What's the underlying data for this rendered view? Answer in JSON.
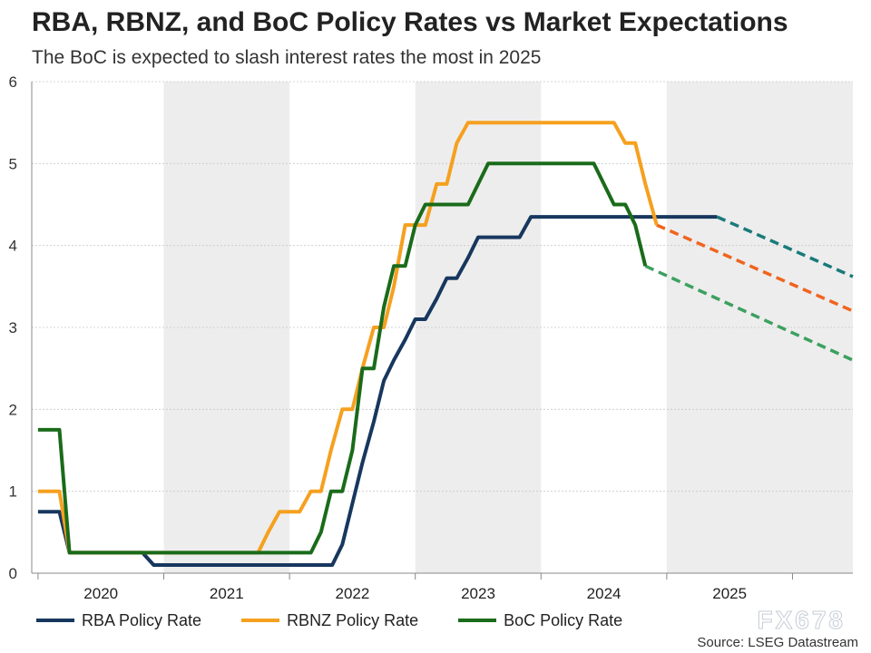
{
  "title": "RBA, RBNZ, and BoC Policy Rates vs Market Expectations",
  "subtitle": "The BoC is expected to slash interest rates the most in 2025",
  "source": "Source: LSEG Datastream",
  "watermark": "FX678",
  "legend": [
    {
      "label": "RBA Policy Rate",
      "color": "#17375e"
    },
    {
      "label": "RBNZ Policy Rate",
      "color": "#f5a01f"
    },
    {
      "label": "BoC Policy Rate",
      "color": "#1a6b1a"
    }
  ],
  "chart_data": {
    "type": "line",
    "xlim": [
      2019.45,
      2025.98
    ],
    "ylim": [
      0,
      6
    ],
    "yticks": [
      "0",
      "1",
      "2",
      "3",
      "4",
      "5",
      "6"
    ],
    "year_labels": [
      "2020",
      "2021",
      "2022",
      "2023",
      "2024",
      "2025"
    ],
    "year_boundaries": [
      2019.5,
      2020.5,
      2021.5,
      2022.5,
      2023.5,
      2024.5,
      2025.5
    ],
    "shaded_years": [
      [
        2020.5,
        2021.5
      ],
      [
        2022.5,
        2023.5
      ],
      [
        2024.5,
        2025.98
      ]
    ],
    "grid": true,
    "legend_position": "bottom",
    "series": [
      {
        "name": "RBA Policy Rate",
        "color": "#17375e",
        "points": [
          [
            2019.5,
            0.75
          ],
          [
            2019.67,
            0.75
          ],
          [
            2019.75,
            0.25
          ],
          [
            2020.33,
            0.25
          ],
          [
            2020.42,
            0.1
          ],
          [
            2021.84,
            0.1
          ],
          [
            2021.92,
            0.35
          ],
          [
            2022.0,
            0.85
          ],
          [
            2022.08,
            1.35
          ],
          [
            2022.17,
            1.85
          ],
          [
            2022.25,
            2.35
          ],
          [
            2022.33,
            2.6
          ],
          [
            2022.42,
            2.85
          ],
          [
            2022.5,
            3.1
          ],
          [
            2022.58,
            3.1
          ],
          [
            2022.67,
            3.35
          ],
          [
            2022.75,
            3.6
          ],
          [
            2022.83,
            3.6
          ],
          [
            2022.92,
            3.85
          ],
          [
            2023.0,
            4.1
          ],
          [
            2023.33,
            4.1
          ],
          [
            2023.42,
            4.35
          ],
          [
            2024.9,
            4.35
          ]
        ]
      },
      {
        "name": "RBNZ Policy Rate",
        "color": "#f5a01f",
        "points": [
          [
            2019.5,
            1.0
          ],
          [
            2019.67,
            1.0
          ],
          [
            2019.75,
            0.25
          ],
          [
            2021.25,
            0.25
          ],
          [
            2021.33,
            0.5
          ],
          [
            2021.42,
            0.75
          ],
          [
            2021.58,
            0.75
          ],
          [
            2021.67,
            1.0
          ],
          [
            2021.75,
            1.0
          ],
          [
            2021.83,
            1.5
          ],
          [
            2021.92,
            2.0
          ],
          [
            2022.0,
            2.0
          ],
          [
            2022.08,
            2.5
          ],
          [
            2022.17,
            3.0
          ],
          [
            2022.25,
            3.0
          ],
          [
            2022.33,
            3.5
          ],
          [
            2022.42,
            4.25
          ],
          [
            2022.58,
            4.25
          ],
          [
            2022.67,
            4.75
          ],
          [
            2022.75,
            4.75
          ],
          [
            2022.83,
            5.25
          ],
          [
            2022.92,
            5.5
          ],
          [
            2024.08,
            5.5
          ],
          [
            2024.17,
            5.25
          ],
          [
            2024.25,
            5.25
          ],
          [
            2024.33,
            4.75
          ],
          [
            2024.42,
            4.25
          ]
        ]
      },
      {
        "name": "BoC Policy Rate",
        "color": "#1a6b1a",
        "points": [
          [
            2019.5,
            1.75
          ],
          [
            2019.67,
            1.75
          ],
          [
            2019.75,
            0.25
          ],
          [
            2021.67,
            0.25
          ],
          [
            2021.75,
            0.5
          ],
          [
            2021.83,
            1.0
          ],
          [
            2021.92,
            1.0
          ],
          [
            2022.0,
            1.5
          ],
          [
            2022.08,
            2.5
          ],
          [
            2022.17,
            2.5
          ],
          [
            2022.25,
            3.25
          ],
          [
            2022.33,
            3.75
          ],
          [
            2022.42,
            3.75
          ],
          [
            2022.5,
            4.25
          ],
          [
            2022.58,
            4.5
          ],
          [
            2022.92,
            4.5
          ],
          [
            2023.08,
            5.0
          ],
          [
            2023.92,
            5.0
          ],
          [
            2024.08,
            4.5
          ],
          [
            2024.17,
            4.5
          ],
          [
            2024.25,
            4.25
          ],
          [
            2024.33,
            3.75
          ]
        ]
      }
    ],
    "expectations": [
      {
        "color": "#1a7a7a",
        "points": [
          [
            2024.9,
            4.35
          ],
          [
            2025.98,
            3.62
          ]
        ]
      },
      {
        "color": "#f0641e",
        "points": [
          [
            2024.42,
            4.25
          ],
          [
            2025.98,
            3.2
          ]
        ]
      },
      {
        "color": "#3da060",
        "points": [
          [
            2024.33,
            3.75
          ],
          [
            2025.98,
            2.6
          ]
        ]
      }
    ]
  }
}
